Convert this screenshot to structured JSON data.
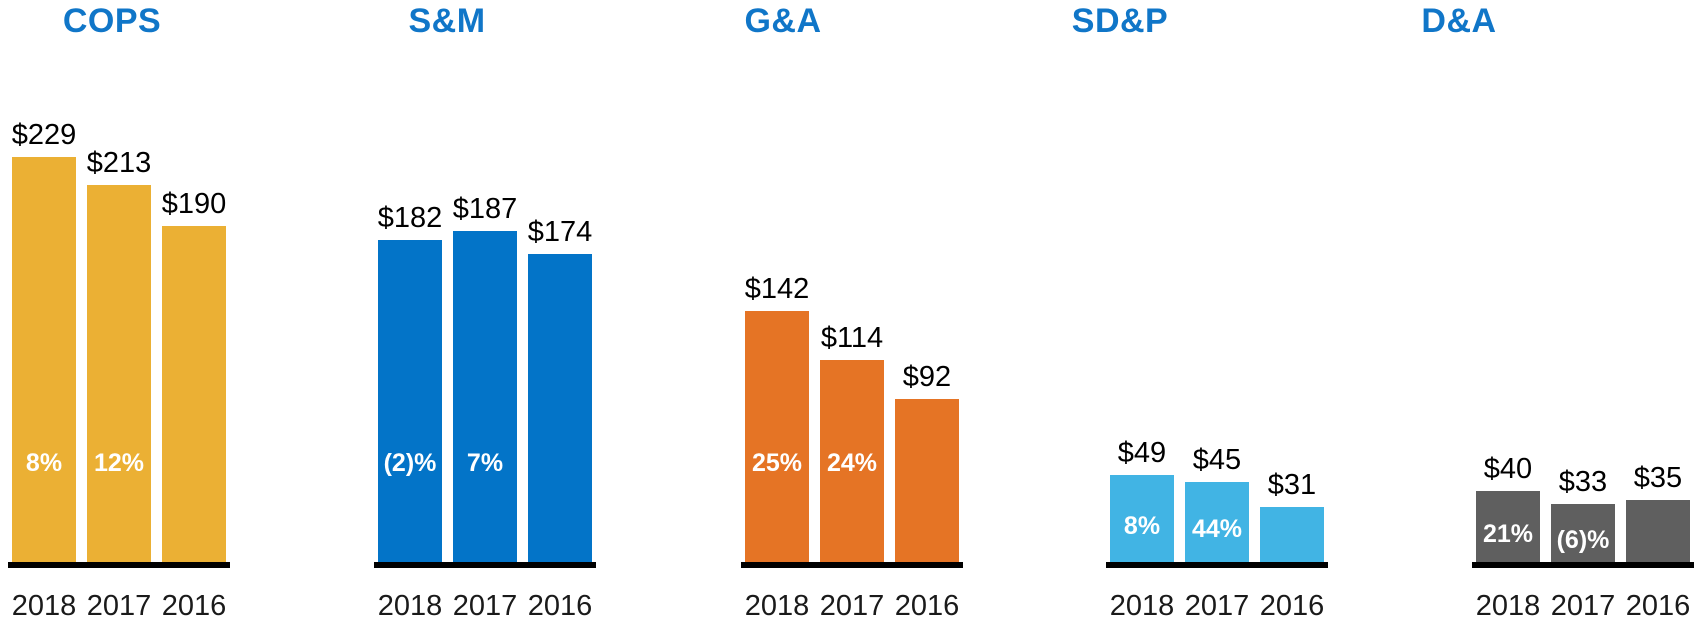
{
  "page": {
    "background": "#FFFFFF",
    "title_color": "#1076C8",
    "axis_color": "#000000",
    "value_label_color": "#000000",
    "year_label_color": "#1A1A1A",
    "pct_label_color": "#FFFFFF"
  },
  "chart_data": [
    {
      "type": "bar",
      "title": "COPS",
      "bar_color": "#EBB034",
      "categories": [
        "2018",
        "2017",
        "2016"
      ],
      "values": [
        229,
        213,
        190
      ],
      "value_labels": [
        "$229",
        "$213",
        "$190"
      ],
      "pct_labels": [
        "8%",
        "12%",
        ""
      ],
      "ylim": [
        0,
        240
      ],
      "grid": false,
      "legend": false,
      "xlabel": "",
      "ylabel": ""
    },
    {
      "type": "bar",
      "title": "S&M",
      "bar_color": "#0374C8",
      "categories": [
        "2018",
        "2017",
        "2016"
      ],
      "values": [
        182,
        187,
        174
      ],
      "value_labels": [
        "$182",
        "$187",
        "$174"
      ],
      "pct_labels": [
        "(2)%",
        "7%",
        ""
      ],
      "ylim": [
        0,
        240
      ],
      "grid": false,
      "legend": false,
      "xlabel": "",
      "ylabel": ""
    },
    {
      "type": "bar",
      "title": "G&A",
      "bar_color": "#E57425",
      "categories": [
        "2018",
        "2017",
        "2016"
      ],
      "values": [
        142,
        114,
        92
      ],
      "value_labels": [
        "$142",
        "$114",
        "$92"
      ],
      "pct_labels": [
        "25%",
        "24%",
        ""
      ],
      "ylim": [
        0,
        240
      ],
      "grid": false,
      "legend": false,
      "xlabel": "",
      "ylabel": ""
    },
    {
      "type": "bar",
      "title": "SD&P",
      "bar_color": "#41B4E4",
      "categories": [
        "2018",
        "2017",
        "2016"
      ],
      "values": [
        49,
        45,
        31
      ],
      "value_labels": [
        "$49",
        "$45",
        "$31"
      ],
      "pct_labels": [
        "8%",
        "44%",
        ""
      ],
      "ylim": [
        0,
        240
      ],
      "grid": false,
      "legend": false,
      "xlabel": "",
      "ylabel": ""
    },
    {
      "type": "bar",
      "title": "D&A",
      "bar_color": "#5F5F5F",
      "categories": [
        "2018",
        "2017",
        "2016"
      ],
      "values": [
        40,
        33,
        35
      ],
      "value_labels": [
        "$40",
        "$33",
        "$35"
      ],
      "pct_labels": [
        "21%",
        "(6)%",
        ""
      ],
      "ylim": [
        0,
        240
      ],
      "grid": false,
      "legend": false,
      "xlabel": "",
      "ylabel": ""
    }
  ]
}
